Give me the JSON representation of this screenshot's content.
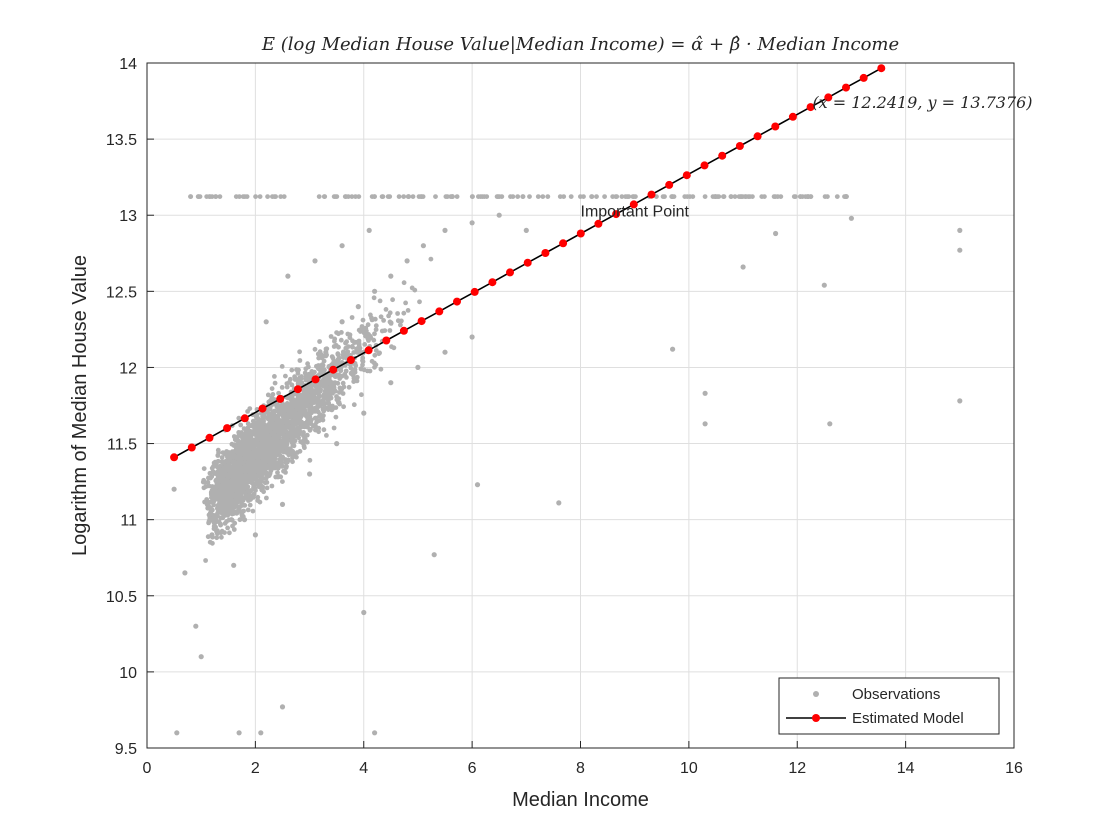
{
  "chart_data": {
    "type": "scatter",
    "title": "E (log Median House Value|Median Income) = α̂ + β̂ · Median Income",
    "xlabel": "Median Income",
    "ylabel": "Logarithm of Median House Value",
    "xlim": [
      0,
      16
    ],
    "ylim": [
      9.5,
      14
    ],
    "xticks": [
      "0",
      "2",
      "4",
      "6",
      "8",
      "10",
      "12",
      "14",
      "16"
    ],
    "yticks": [
      "9.5",
      "10",
      "10.5",
      "11",
      "11.5",
      "12",
      "12.5",
      "13",
      "13.5",
      "14"
    ],
    "grid": true,
    "legend_position": "bottom-right",
    "series": [
      {
        "name": "Observations",
        "kind": "scatter",
        "color": "#b0b0b0",
        "cap_value": 13.1224,
        "points": [
          [
            1.2,
            10.9
          ],
          [
            1.5,
            11.1
          ],
          [
            1.8,
            11.0
          ],
          [
            2.1,
            11.3
          ],
          [
            2.4,
            11.5
          ],
          [
            2.7,
            11.7
          ],
          [
            3.0,
            11.9
          ],
          [
            3.3,
            12.1
          ],
          [
            3.6,
            12.3
          ],
          [
            3.9,
            12.4
          ],
          [
            4.2,
            12.5
          ],
          [
            4.5,
            12.6
          ],
          [
            4.8,
            12.7
          ],
          [
            5.1,
            12.8
          ],
          [
            5.5,
            12.9
          ],
          [
            6.0,
            12.95
          ],
          [
            6.5,
            13.0
          ],
          [
            7.0,
            12.9
          ],
          [
            1.6,
            10.7
          ],
          [
            2.0,
            10.9
          ],
          [
            2.5,
            11.1
          ],
          [
            3.0,
            11.3
          ],
          [
            3.5,
            11.5
          ],
          [
            4.0,
            11.7
          ],
          [
            4.5,
            11.9
          ],
          [
            5.0,
            12.0
          ],
          [
            5.5,
            12.1
          ],
          [
            6.0,
            12.2
          ],
          [
            2.2,
            12.3
          ],
          [
            2.6,
            12.6
          ],
          [
            3.1,
            12.7
          ],
          [
            3.6,
            12.8
          ],
          [
            4.1,
            12.9
          ],
          [
            0.5,
            11.2
          ],
          [
            0.7,
            10.65
          ],
          [
            0.9,
            10.3
          ],
          [
            1.0,
            10.1
          ],
          [
            1.7,
            9.6
          ],
          [
            2.1,
            9.6
          ],
          [
            4.2,
            9.6
          ],
          [
            0.55,
            9.6
          ],
          [
            2.5,
            9.77
          ],
          [
            4.0,
            10.39
          ],
          [
            5.3,
            10.77
          ],
          [
            6.1,
            11.23
          ],
          [
            7.6,
            11.11
          ],
          [
            9.7,
            12.12
          ],
          [
            10.3,
            11.63
          ],
          [
            10.3,
            11.83
          ],
          [
            11.0,
            12.66
          ],
          [
            12.5,
            12.54
          ],
          [
            12.6,
            11.63
          ],
          [
            15.0,
            11.78
          ],
          [
            15.0,
            12.77
          ],
          [
            15.0,
            12.9
          ],
          [
            11.6,
            12.88
          ],
          [
            13.0,
            12.98
          ]
        ]
      },
      {
        "name": "Estimated Model",
        "kind": "line",
        "color": "#ff0000",
        "line_color": "#000000",
        "x": [
          0.4999,
          0.8262,
          1.1525,
          1.4788,
          1.8051,
          2.1314,
          2.4577,
          2.784,
          3.1103,
          3.4366,
          3.7629,
          4.0892,
          4.4155,
          4.7418,
          5.0681,
          5.3944,
          5.7207,
          6.047,
          6.3733,
          6.6996,
          7.0259,
          7.3522,
          7.6785,
          8.0048,
          8.3311,
          8.6574,
          8.9837,
          9.31,
          9.6363,
          9.9626,
          10.2889,
          10.6152,
          10.9415,
          11.2678,
          11.5941,
          11.9204,
          12.2467,
          12.573,
          12.8993,
          13.2256,
          13.5519
        ],
        "y": [
          11.41,
          11.4739,
          11.5378,
          11.6017,
          11.6656,
          11.7295,
          11.7934,
          11.8573,
          11.9212,
          11.9851,
          12.049,
          12.1129,
          12.1768,
          12.2407,
          12.3046,
          12.3685,
          12.4324,
          12.4963,
          12.5602,
          12.6241,
          12.688,
          12.7519,
          12.8158,
          12.8797,
          12.9436,
          13.0075,
          13.0714,
          13.1353,
          13.1992,
          13.2631,
          13.327,
          13.3909,
          13.4548,
          13.5187,
          13.5826,
          13.6465,
          13.7104,
          13.7743,
          13.8382,
          13.9021,
          13.966
        ]
      }
    ],
    "annotations": [
      {
        "text": "Important Point",
        "x": 8.0,
        "y": 12.99
      },
      {
        "text": "(x = 12.2419, y = 13.7376)",
        "x": 12.2419,
        "y": 13.7376
      }
    ]
  }
}
